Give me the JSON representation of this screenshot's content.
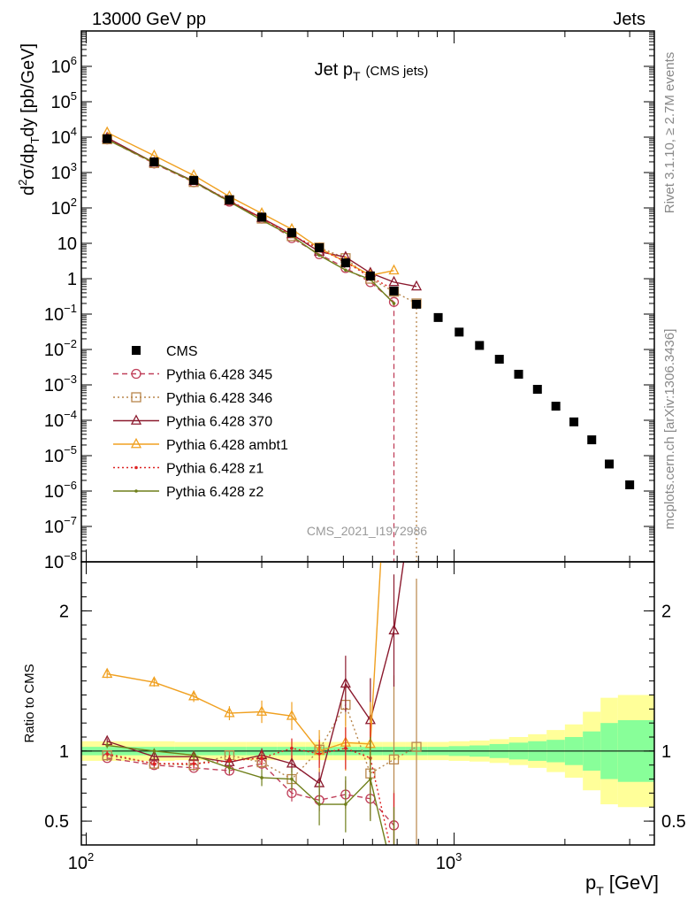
{
  "header": {
    "left": "13000 GeV pp",
    "right": "Jets"
  },
  "side_labels": {
    "rivet": "Rivet 3.1.10, ≥ 2.7M events",
    "mcplots": "mcplots.cern.ch [arXiv:1306.3436]"
  },
  "chart_data": {
    "type": "scatter",
    "title": "Jet p_T (CMS jets)",
    "title_main": "Jet p",
    "title_sub": "T",
    "title_extra": "(CMS jets)",
    "watermark": "CMS_2021_I1972986",
    "xlabel": "p_T [GeV]",
    "xlabel_main": "p",
    "xlabel_sub": "T",
    "xlabel_unit": "[GeV]",
    "ylabel": "d²σ/dp_T dy [pb/GeV]",
    "ratio_ylabel": "Ratio to CMS",
    "x_scale": "log",
    "xlim": [
      97,
      3500
    ],
    "ylim": [
      1e-08,
      10000000.0
    ],
    "ratio_ylim": [
      0.33,
      2.35
    ],
    "x_ticks": [
      {
        "v": 100,
        "b": "10",
        "e": "2"
      },
      {
        "v": 1000,
        "b": "10",
        "e": "3"
      }
    ],
    "y_ticks": [
      {
        "v": 1000000.0,
        "b": "10",
        "e": "6"
      },
      {
        "v": 100000.0,
        "b": "10",
        "e": "5"
      },
      {
        "v": 10000.0,
        "b": "10",
        "e": "4"
      },
      {
        "v": 1000.0,
        "b": "10",
        "e": "3"
      },
      {
        "v": 100.0,
        "b": "10",
        "e": "2"
      },
      {
        "v": 10,
        "b": "10",
        "e": ""
      },
      {
        "v": 1,
        "b": "1",
        "e": ""
      },
      {
        "v": 0.1,
        "b": "10",
        "e": "−1"
      },
      {
        "v": 0.01,
        "b": "10",
        "e": "−2"
      },
      {
        "v": 0.001,
        "b": "10",
        "e": "−3"
      },
      {
        "v": 0.0001,
        "b": "10",
        "e": "−4"
      },
      {
        "v": 1e-05,
        "b": "10",
        "e": "−5"
      },
      {
        "v": 1e-06,
        "b": "10",
        "e": "−6"
      },
      {
        "v": 1e-07,
        "b": "10",
        "e": "−7"
      },
      {
        "v": 1e-08,
        "b": "10",
        "e": "−8"
      }
    ],
    "ratio_ticks": [
      {
        "v": 0.5,
        "label": "0.5"
      },
      {
        "v": 1,
        "label": "1"
      },
      {
        "v": 2,
        "label": "2"
      }
    ],
    "legend_position": "left",
    "x": [
      114,
      153,
      196,
      245,
      300,
      362,
      430,
      507,
      592,
      686,
      790,
      905,
      1032,
      1172,
      1327,
      1497,
      1684,
      1890,
      2116,
      2366,
      2640,
      3000
    ],
    "bin_edges": [
      97,
      133,
      174,
      220,
      272,
      330,
      395,
      468,
      548,
      638,
      737,
      846,
      967,
      1101,
      1248,
      1410,
      1588,
      1784,
      2000,
      2238,
      2500,
      2787,
      3500
    ],
    "cms": {
      "name": "CMS",
      "values": [
        9000,
        2000,
        600,
        170,
        55,
        20,
        7.5,
        2.8,
        1.2,
        0.45,
        0.19,
        0.08,
        0.031,
        0.013,
        0.0053,
        0.002,
        0.00075,
        0.00025,
        9e-05,
        2.8e-05,
        5.8e-06,
        1.5e-06
      ],
      "band_stat": [
        0.03,
        0.03,
        0.03,
        0.03,
        0.03,
        0.03,
        0.03,
        0.03,
        0.03,
        0.03,
        0.03,
        0.03,
        0.035,
        0.04,
        0.05,
        0.06,
        0.07,
        0.08,
        0.1,
        0.14,
        0.2,
        0.22
      ],
      "band_tot": [
        0.07,
        0.07,
        0.065,
        0.065,
        0.065,
        0.065,
        0.065,
        0.065,
        0.065,
        0.065,
        0.065,
        0.065,
        0.07,
        0.075,
        0.085,
        0.1,
        0.12,
        0.15,
        0.19,
        0.28,
        0.38,
        0.4
      ]
    },
    "series": [
      {
        "name": "Pythia 6.428 345",
        "color": "#c0405a",
        "dash": "6,4",
        "marker": "circle",
        "values": [
          8600,
          1800,
          530,
          150,
          50,
          14,
          4.9,
          2.0,
          0.8,
          0.22
        ],
        "ratio": [
          0.95,
          0.9,
          0.88,
          0.86,
          0.91,
          0.7,
          0.65,
          0.69,
          0.66,
          0.47
        ],
        "err": [
          0.02,
          0.02,
          0.02,
          0.03,
          0.04,
          0.06,
          0.08,
          0.1,
          0.15,
          0.25
        ]
      },
      {
        "name": "Pythia 6.428 346",
        "color": "#b8864b",
        "dash": "2,3",
        "marker": "square",
        "values": [
          8700,
          1850,
          540,
          165,
          50,
          16,
          7.6,
          3.8,
          1.0,
          0.43,
          0.2
        ],
        "ratio": [
          0.97,
          0.91,
          0.9,
          0.97,
          0.92,
          0.8,
          1.01,
          1.33,
          0.84,
          0.94,
          1.03
        ],
        "err": [
          0.02,
          0.02,
          0.02,
          0.03,
          0.04,
          0.06,
          0.1,
          0.15,
          0.3,
          0.6,
          1.2
        ]
      },
      {
        "name": "Pythia 6.428 370",
        "color": "#8b1a2e",
        "dash": "",
        "marker": "triangle",
        "values": [
          9600,
          1900,
          570,
          155,
          52,
          18,
          5.8,
          4.1,
          1.45,
          0.8,
          0.6
        ],
        "ratio": [
          1.07,
          0.96,
          0.96,
          0.92,
          0.97,
          0.91,
          0.77,
          1.48,
          1.22,
          1.86,
          3.0
        ],
        "err": [
          0.02,
          0.02,
          0.03,
          0.04,
          0.05,
          0.06,
          0.1,
          0.2,
          0.3,
          0.4,
          0.5
        ]
      },
      {
        "name": "Pythia 6.428 ambt1",
        "color": "#f0a020",
        "dash": "",
        "marker": "triangle",
        "values": [
          13500,
          3000,
          830,
          210,
          70,
          25,
          7.3,
          3.0,
          1.25,
          1.7
        ],
        "ratio": [
          1.55,
          1.49,
          1.39,
          1.27,
          1.28,
          1.25,
          1.0,
          1.06,
          1.05,
          4.0
        ],
        "err": [
          0.03,
          0.03,
          0.04,
          0.05,
          0.08,
          0.1,
          0.15,
          0.2,
          0.3,
          0.4
        ]
      },
      {
        "name": "Pythia 6.428 z1",
        "color": "#dd2222",
        "dash": "2,3",
        "marker": "dot",
        "values": [
          8800,
          1850,
          550,
          160,
          52,
          17,
          7.0,
          3.0,
          1.1,
          0.5
        ],
        "ratio": [
          0.98,
          0.91,
          0.91,
          0.93,
          0.95,
          1.02,
          0.98,
          1.02,
          0.95,
          0.2
        ],
        "err": [
          0.02,
          0.02,
          0.03,
          0.04,
          0.05,
          0.07,
          0.1,
          0.15,
          0.25,
          0.5
        ]
      },
      {
        "name": "Pythia 6.428 z2",
        "color": "#6f7f1a",
        "dash": "",
        "marker": "dot",
        "values": [
          8500,
          1900,
          550,
          150,
          45,
          16,
          4.6,
          1.75,
          0.95,
          0.2
        ],
        "ratio": [
          1.04,
          1.0,
          0.97,
          0.88,
          0.81,
          0.8,
          0.62,
          0.62,
          0.8,
          0.1
        ],
        "err": [
          0.02,
          0.02,
          0.03,
          0.04,
          0.06,
          0.08,
          0.15,
          0.2,
          0.3,
          0.5
        ]
      }
    ]
  }
}
